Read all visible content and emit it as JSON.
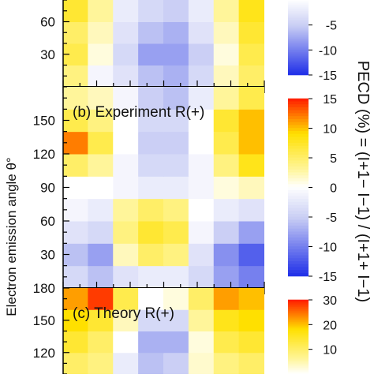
{
  "chart_data": {
    "type": "heatmap",
    "y_axis_label": "Electron emission angle θ°",
    "colorbar_title": "PECD (%) = (I+1− I−1) / (I+1+ I−1)",
    "colors": {
      "negative_strong": "#1f2fe8",
      "negative_light": "#c8cdf4",
      "zero": "#ffffff",
      "positive_light": "#fff59a",
      "positive_mid": "#ffe000",
      "positive_strong": "#ff1a00"
    },
    "panels": [
      {
        "id": "a",
        "label": "",
        "ylim": [
          0,
          80
        ],
        "yticks": [
          30,
          60
        ],
        "y_range_visible": [
          0,
          80
        ],
        "x_bins": 8,
        "y_values": [
          10,
          30,
          50,
          70
        ],
        "values": [
          [
            4,
            -1,
            -3,
            -6,
            -7,
            -4,
            2,
            5
          ],
          [
            6,
            1,
            -4,
            -8,
            -8,
            -5,
            1,
            6
          ],
          [
            5,
            2,
            -3,
            -6,
            -7,
            -3,
            2,
            7
          ],
          [
            7,
            3,
            -2,
            -4,
            -5,
            -2,
            3,
            8
          ]
        ],
        "colorbar": {
          "ticks": [
            -5,
            -10,
            -15
          ],
          "range": [
            -15,
            0
          ]
        }
      },
      {
        "id": "b",
        "label": "(b) Experiment R(+)",
        "ylim": [
          0,
          180
        ],
        "yticks": [
          30,
          60,
          90,
          120,
          150
        ],
        "x_bins": 8,
        "y_values": [
          10,
          30,
          50,
          70,
          90,
          110,
          130,
          150,
          170
        ],
        "values": [
          [
            -4,
            -6,
            -3,
            -2,
            -2,
            -4,
            -8,
            -10
          ],
          [
            -6,
            -8,
            2,
            5,
            4,
            -3,
            -9,
            -12
          ],
          [
            -3,
            -4,
            4,
            7,
            6,
            -1,
            -5,
            -8
          ],
          [
            -1,
            -2,
            3,
            5,
            4,
            0,
            -2,
            -3
          ],
          [
            0,
            0,
            -1,
            -2,
            -2,
            -1,
            1,
            2
          ],
          [
            5,
            3,
            -1,
            -4,
            -4,
            -1,
            4,
            8
          ],
          [
            12,
            6,
            0,
            -5,
            -5,
            0,
            6,
            10
          ],
          [
            6,
            4,
            0,
            -4,
            -4,
            0,
            7,
            10
          ],
          [
            3,
            2,
            -1,
            -5,
            -6,
            -2,
            3,
            6
          ]
        ],
        "colorbar": {
          "ticks": [
            15,
            10,
            5,
            0,
            -5,
            -10,
            -15
          ],
          "range": [
            -15,
            15
          ]
        }
      },
      {
        "id": "c",
        "label": "(c) Theory R(+)",
        "ylim": [
          100,
          180
        ],
        "yticks": [
          120,
          150,
          180
        ],
        "x_bins": 8,
        "y_values": [
          110,
          130,
          150,
          170
        ],
        "values": [
          [
            10,
            8,
            -2,
            -6,
            -5,
            3,
            8,
            10
          ],
          [
            14,
            10,
            0,
            -7,
            -7,
            2,
            12,
            14
          ],
          [
            18,
            14,
            4,
            -4,
            -4,
            6,
            16,
            18
          ],
          [
            22,
            28,
            12,
            0,
            2,
            10,
            22,
            20
          ]
        ],
        "colorbar": {
          "ticks": [
            30,
            20,
            10
          ],
          "range": [
            0,
            30
          ]
        }
      }
    ]
  }
}
